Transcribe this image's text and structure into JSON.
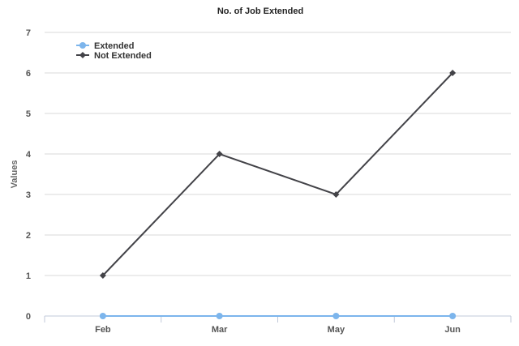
{
  "chart_data": {
    "type": "line",
    "title": "No. of Job Extended",
    "xlabel": "",
    "ylabel": "Values",
    "categories": [
      "Feb",
      "Mar",
      "May",
      "Jun"
    ],
    "ylim": [
      0,
      7
    ],
    "yticks": [
      0,
      1,
      2,
      3,
      4,
      5,
      6,
      7
    ],
    "grid": true,
    "legend_position": "top-left",
    "series": [
      {
        "name": "Extended",
        "values": [
          0,
          0,
          0,
          0
        ],
        "color": "#7cb5ec",
        "marker": "circle"
      },
      {
        "name": "Not Extended",
        "values": [
          1,
          4,
          3,
          6
        ],
        "color": "#434348",
        "marker": "diamond"
      }
    ]
  }
}
